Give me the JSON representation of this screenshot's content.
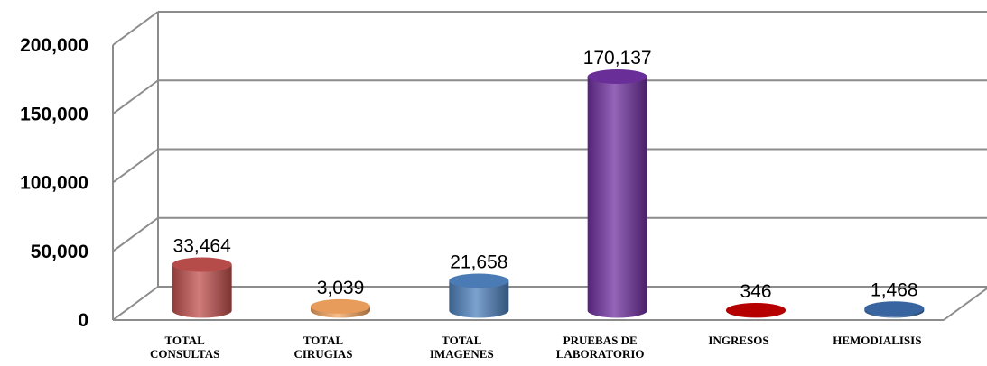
{
  "chart_data": {
    "type": "bar",
    "style": "3d-cylinder",
    "title": "",
    "xlabel": "",
    "ylabel": "",
    "ylim": [
      0,
      200000
    ],
    "yticks": [
      0,
      50000,
      100000,
      150000,
      200000
    ],
    "ytick_labels": [
      "0",
      "50,000",
      "100,000",
      "150,000",
      "200,000"
    ],
    "grid": true,
    "legend": "none",
    "categories": [
      [
        "TOTAL",
        "CONSULTAS"
      ],
      [
        "TOTAL",
        "CIRUGIAS"
      ],
      [
        "TOTAL",
        "IMAGENES"
      ],
      [
        "PRUEBAS DE",
        "LABORATORIO"
      ],
      [
        "INGRESOS"
      ],
      [
        "HEMODIALISIS"
      ]
    ],
    "values": [
      33464,
      3039,
      21658,
      170137,
      346,
      1468
    ],
    "value_labels": [
      "33,464",
      "3,039",
      "21,658",
      "170,137",
      "346",
      "1,468"
    ],
    "colors": [
      "#c0504d",
      "#f4a460",
      "#4f81bd",
      "#7030a0",
      "#c00000",
      "#3b6aa8"
    ]
  }
}
